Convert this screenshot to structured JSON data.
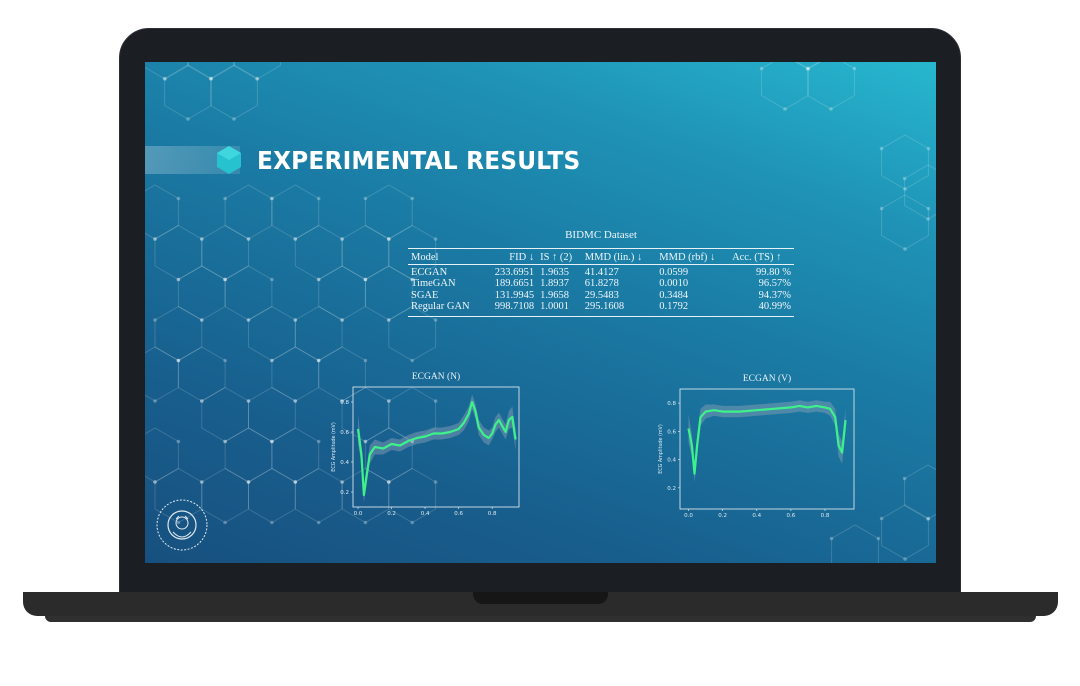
{
  "slide": {
    "title": "EXPERIMENTAL RESULTS",
    "title_icon": "hexagon-icon",
    "accent_color": "#27c2cf"
  },
  "table": {
    "caption": "BIDMC Dataset",
    "columns": [
      "Model",
      "FID ↓",
      "IS ↑ (2)",
      "MMD (lin.) ↓",
      "MMD (rbf) ↓",
      "Acc. (TS) ↑"
    ],
    "rows": [
      [
        "ECGAN",
        "233.6951",
        "1.9635",
        "41.4127",
        "0.0599",
        "99.80 %"
      ],
      [
        "TimeGAN",
        "189.6651",
        "1.8937",
        "61.8278",
        "0.0010",
        "96.57%"
      ],
      [
        "SGAE",
        "131.9945",
        "1.9658",
        "29.5483",
        "0.3484",
        "94.37%"
      ],
      [
        "Regular GAN",
        "998.7108",
        "1.0001",
        "295.1608",
        "0.1792",
        "40.99%"
      ]
    ]
  },
  "chart_data": [
    {
      "type": "line",
      "title": "ECGAN (N)",
      "xlabel": "",
      "ylabel": "ECG Amplitude (mV)",
      "xlim": [
        -0.03,
        0.96
      ],
      "ylim": [
        0.1,
        0.9
      ],
      "xticks": [
        "0.0",
        "0.2",
        "0.4",
        "0.6",
        "0.8"
      ],
      "yticks": [
        "0.2",
        "0.4",
        "0.6",
        "0.8"
      ],
      "line_color": "#3ef28a",
      "band_color": "#8fa3b8",
      "x": [
        0.0,
        0.02,
        0.035,
        0.05,
        0.07,
        0.1,
        0.15,
        0.2,
        0.25,
        0.3,
        0.35,
        0.4,
        0.45,
        0.5,
        0.55,
        0.6,
        0.63,
        0.66,
        0.68,
        0.7,
        0.72,
        0.75,
        0.78,
        0.8,
        0.82,
        0.84,
        0.86,
        0.88,
        0.9,
        0.92,
        0.93,
        0.94
      ],
      "values": [
        0.62,
        0.45,
        0.18,
        0.3,
        0.45,
        0.5,
        0.49,
        0.52,
        0.51,
        0.54,
        0.56,
        0.57,
        0.59,
        0.59,
        0.6,
        0.62,
        0.66,
        0.72,
        0.8,
        0.74,
        0.63,
        0.58,
        0.56,
        0.59,
        0.65,
        0.68,
        0.64,
        0.6,
        0.68,
        0.7,
        0.62,
        0.55
      ],
      "band": [
        0.1,
        0.06,
        0.05,
        0.06,
        0.06,
        0.05,
        0.04,
        0.04,
        0.04,
        0.04,
        0.04,
        0.04,
        0.04,
        0.04,
        0.04,
        0.04,
        0.05,
        0.05,
        0.05,
        0.05,
        0.05,
        0.05,
        0.05,
        0.04,
        0.05,
        0.05,
        0.05,
        0.05,
        0.06,
        0.07,
        0.07,
        0.07
      ]
    },
    {
      "type": "line",
      "title": "ECGAN (V)",
      "xlabel": "",
      "ylabel": "ECG Amplitude (mV)",
      "xlim": [
        -0.05,
        0.97
      ],
      "ylim": [
        0.05,
        0.9
      ],
      "xticks": [
        "0.0",
        "0.2",
        "0.4",
        "0.6",
        "0.8"
      ],
      "yticks": [
        "0.2",
        "0.4",
        "0.6",
        "0.8"
      ],
      "line_color": "#3ef28a",
      "band_color": "#8fa3b8",
      "x": [
        0.0,
        0.02,
        0.035,
        0.05,
        0.07,
        0.1,
        0.15,
        0.2,
        0.3,
        0.4,
        0.5,
        0.6,
        0.65,
        0.7,
        0.75,
        0.8,
        0.83,
        0.86,
        0.88,
        0.9,
        0.92
      ],
      "values": [
        0.62,
        0.5,
        0.3,
        0.5,
        0.7,
        0.74,
        0.75,
        0.74,
        0.74,
        0.75,
        0.76,
        0.77,
        0.78,
        0.77,
        0.78,
        0.77,
        0.76,
        0.7,
        0.5,
        0.45,
        0.68
      ],
      "band": [
        0.1,
        0.08,
        0.06,
        0.08,
        0.06,
        0.05,
        0.04,
        0.04,
        0.04,
        0.04,
        0.04,
        0.04,
        0.04,
        0.04,
        0.04,
        0.04,
        0.05,
        0.06,
        0.08,
        0.08,
        0.08
      ]
    }
  ]
}
